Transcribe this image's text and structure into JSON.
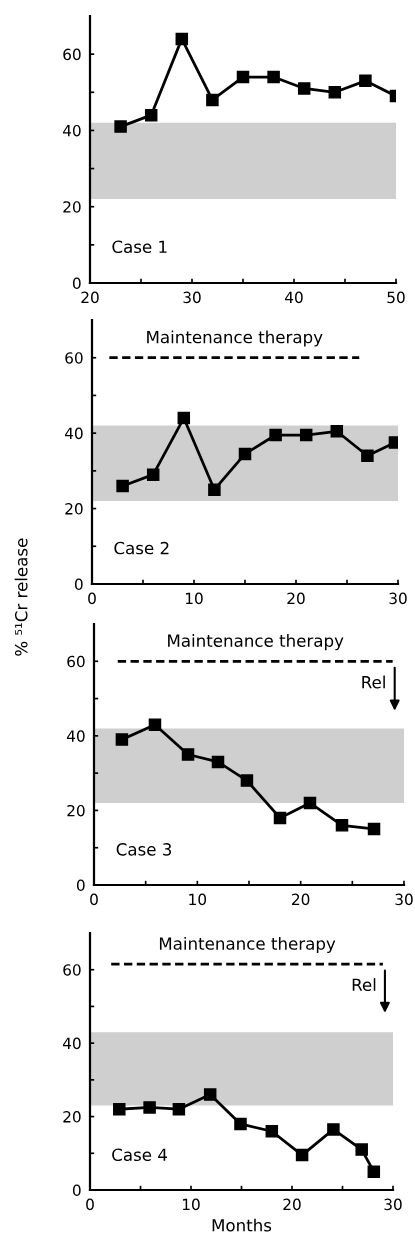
{
  "chart_data": [
    {
      "type": "line",
      "annotations": [
        "Case 1"
      ],
      "marker": "square",
      "line_style": "solid",
      "grid": false,
      "xlim": [
        20,
        50
      ],
      "xticks": [
        20,
        {
          "value": 25,
          "label": null
        },
        30,
        {
          "value": 35,
          "label": null
        },
        40,
        {
          "value": 45,
          "label": null
        },
        50
      ],
      "ylim": [
        0,
        70
      ],
      "yticks": [
        0,
        {
          "value": 10,
          "label": null
        },
        20,
        {
          "value": 30,
          "label": null
        },
        40,
        {
          "value": 50,
          "label": null
        },
        60
      ],
      "bands": [
        {
          "axis": "y",
          "from": 22,
          "to": 42,
          "color": "#cfcfcf"
        }
      ],
      "series": [
        {
          "color": "#000000",
          "x": [
            23,
            26,
            29,
            32,
            35,
            38,
            41,
            44,
            47,
            50
          ],
          "values": [
            41,
            44,
            64,
            48,
            54,
            54,
            51,
            50,
            53,
            49
          ]
        }
      ]
    },
    {
      "type": "line",
      "annotations": [
        "Case 2"
      ],
      "marker": "square",
      "line_style": "solid",
      "grid": false,
      "ylabel": "% ⁵¹Cr release",
      "xlim": [
        0,
        30
      ],
      "xticks": [
        0,
        {
          "value": 5,
          "label": null
        },
        10,
        {
          "value": 15,
          "label": null
        },
        20,
        {
          "value": 25,
          "label": null
        },
        30
      ],
      "ylim": [
        0,
        70
      ],
      "yticks": [
        0,
        {
          "value": 10,
          "label": null
        },
        20,
        {
          "value": 30,
          "label": null
        },
        40,
        {
          "value": 50,
          "label": null
        },
        60
      ],
      "bands": [
        {
          "axis": "y",
          "from": 22,
          "to": 42,
          "color": "#cfcfcf"
        }
      ],
      "series": [
        {
          "color": "#000000",
          "x": [
            3,
            6,
            9,
            12,
            15,
            18,
            21,
            24,
            27,
            29.7
          ],
          "values": [
            26,
            29,
            44,
            25,
            34.5,
            39.5,
            39.5,
            40.5,
            34,
            37.5
          ]
        },
        {
          "name": "Maintenance therapy",
          "type": "line",
          "line_style": "dashed",
          "marker": "none",
          "color": "#000000",
          "x": [
            1.7,
            26.2
          ],
          "values": [
            60,
            60
          ]
        }
      ]
    },
    {
      "type": "line",
      "annotations": [
        "Case 3",
        "Rel"
      ],
      "marker": "square",
      "line_style": "solid",
      "grid": false,
      "xlim": [
        0,
        30
      ],
      "xticks": [
        0,
        {
          "value": 5,
          "label": null
        },
        10,
        {
          "value": 15,
          "label": null
        },
        20,
        {
          "value": 25,
          "label": null
        },
        30
      ],
      "ylim": [
        0,
        70
      ],
      "yticks": [
        0,
        {
          "value": 10,
          "label": null
        },
        20,
        {
          "value": 30,
          "label": null
        },
        40,
        {
          "value": 50,
          "label": null
        },
        60
      ],
      "bands": [
        {
          "axis": "y",
          "from": 22,
          "to": 42,
          "color": "#cfcfcf"
        }
      ],
      "series": [
        {
          "color": "#000000",
          "x": [
            2.7,
            5.9,
            9.1,
            12,
            14.8,
            18,
            20.9,
            24,
            27.1
          ],
          "values": [
            39,
            43,
            35,
            33,
            28,
            18,
            22,
            16,
            15
          ]
        },
        {
          "name": "Maintenance therapy",
          "type": "line",
          "line_style": "dashed",
          "marker": "none",
          "color": "#000000",
          "x": [
            2.3,
            28.9
          ],
          "values": [
            60,
            60
          ]
        }
      ]
    },
    {
      "type": "line",
      "annotations": [
        "Case 4",
        "Rel"
      ],
      "marker": "square",
      "line_style": "solid",
      "grid": false,
      "xlabel": "Months",
      "xlim": [
        0,
        30
      ],
      "xticks": [
        0,
        {
          "value": 5,
          "label": null
        },
        10,
        {
          "value": 15,
          "label": null
        },
        20,
        {
          "value": 25,
          "label": null
        },
        30
      ],
      "ylim": [
        0,
        70
      ],
      "yticks": [
        0,
        {
          "value": 10,
          "label": null
        },
        20,
        {
          "value": 30,
          "label": null
        },
        40,
        {
          "value": 50,
          "label": null
        },
        60
      ],
      "bands": [
        {
          "axis": "y",
          "from": 23,
          "to": 43,
          "color": "#cfcfcf"
        }
      ],
      "series": [
        {
          "color": "#000000",
          "x": [
            2.9,
            5.9,
            8.8,
            11.9,
            14.9,
            18,
            21,
            24.1,
            26.9,
            28.1
          ],
          "values": [
            22,
            22.5,
            22,
            26,
            18,
            16,
            9.5,
            16.5,
            11,
            5
          ]
        },
        {
          "name": "Maintenance therapy",
          "type": "line",
          "line_style": "dashed",
          "marker": "none",
          "color": "#000000",
          "x": [
            2.1,
            29
          ],
          "values": [
            61.5,
            61.5
          ]
        }
      ]
    }
  ]
}
